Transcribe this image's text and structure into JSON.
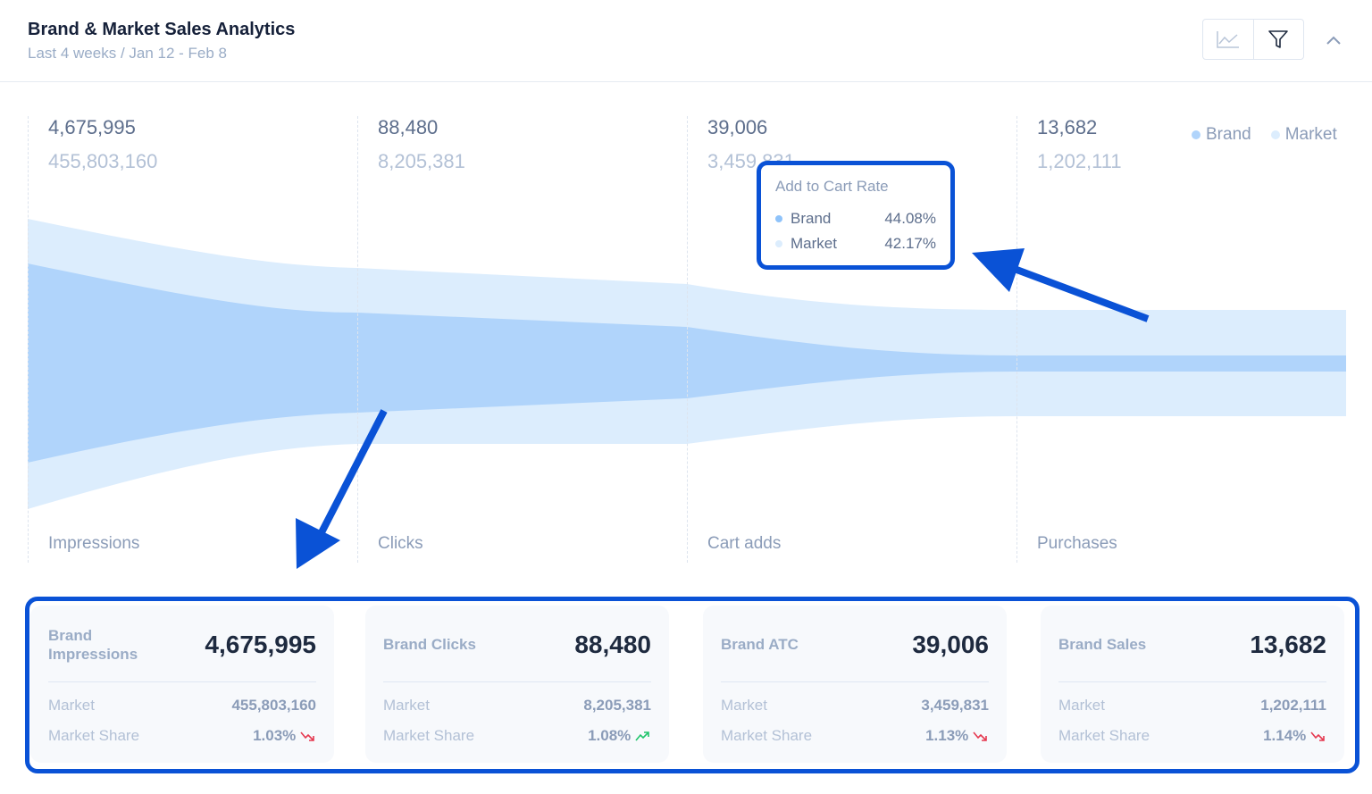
{
  "header": {
    "title": "Brand & Market Sales Analytics",
    "subtitle": "Last 4 weeks / Jan 12 - Feb 8"
  },
  "toolbar": {
    "icons": [
      "line-chart-icon",
      "filter-icon",
      "chevron-up-icon"
    ]
  },
  "legend": {
    "brand": "Brand",
    "market": "Market"
  },
  "colors": {
    "brand": "#b0d4fb",
    "market": "#dcedfd",
    "accent": "#0a52d6",
    "down": "#e5384f",
    "up": "#1fc46b"
  },
  "funnel": [
    {
      "stage": "Impressions",
      "brand": "4,675,995",
      "market": "455,803,160"
    },
    {
      "stage": "Clicks",
      "brand": "88,480",
      "market": "8,205,381"
    },
    {
      "stage": "Cart adds",
      "brand": "39,006",
      "market": "3,459,831"
    },
    {
      "stage": "Purchases",
      "brand": "13,682",
      "market": "1,202,111"
    }
  ],
  "tooltip": {
    "title": "Add to Cart Rate",
    "brand_label": "Brand",
    "brand_value": "44.08%",
    "market_label": "Market",
    "market_value": "42.17%"
  },
  "cards": [
    {
      "label": "Brand Impressions",
      "value": "4,675,995",
      "market_label": "Market",
      "market_value": "455,803,160",
      "share_label": "Market Share",
      "share_value": "1.03%",
      "trend": "down"
    },
    {
      "label": "Brand Clicks",
      "value": "88,480",
      "market_label": "Market",
      "market_value": "8,205,381",
      "share_label": "Market Share",
      "share_value": "1.08%",
      "trend": "up"
    },
    {
      "label": "Brand ATC",
      "value": "39,006",
      "market_label": "Market",
      "market_value": "3,459,831",
      "share_label": "Market Share",
      "share_value": "1.13%",
      "trend": "down"
    },
    {
      "label": "Brand Sales",
      "value": "13,682",
      "market_label": "Market",
      "market_value": "1,202,111",
      "share_label": "Market Share",
      "share_value": "1.14%",
      "trend": "down"
    }
  ]
}
